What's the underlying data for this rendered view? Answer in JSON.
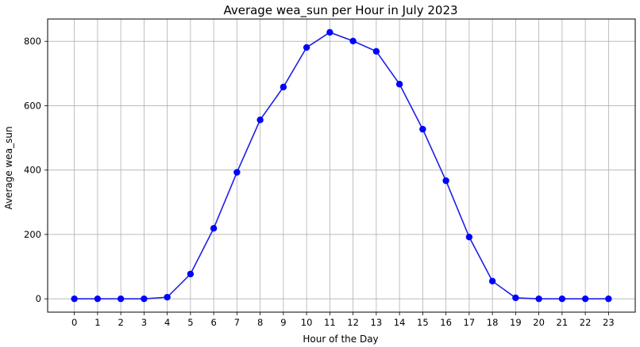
{
  "chart_data": {
    "type": "line",
    "title": "Average wea_sun per Hour in July 2023",
    "xlabel": "Hour of the Day",
    "ylabel": "Average wea_sun",
    "x": [
      0,
      1,
      2,
      3,
      4,
      5,
      6,
      7,
      8,
      9,
      10,
      11,
      12,
      13,
      14,
      15,
      16,
      17,
      18,
      19,
      20,
      21,
      22,
      23
    ],
    "series": [
      {
        "values": [
          0,
          0,
          0,
          0,
          5,
          77,
          219,
          393,
          556,
          658,
          781,
          828,
          801,
          769,
          667,
          527,
          367,
          192,
          55,
          3,
          0,
          0,
          0,
          0
        ]
      }
    ],
    "x_ticks": [
      0,
      1,
      2,
      3,
      4,
      5,
      6,
      7,
      8,
      9,
      10,
      11,
      12,
      13,
      14,
      15,
      16,
      17,
      18,
      19,
      20,
      21,
      22,
      23
    ],
    "y_ticks": [
      0,
      200,
      400,
      600,
      800
    ],
    "xlim": [
      -1.15,
      24.15
    ],
    "ylim": [
      -41.4,
      869.4
    ],
    "grid": true,
    "line_color": "#1f1fe6",
    "marker_color": "#0000ff"
  }
}
